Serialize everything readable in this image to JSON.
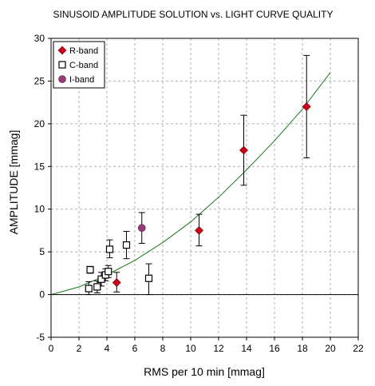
{
  "chart_data": {
    "type": "scatter",
    "title": "SINUSOID AMPLITUDE SOLUTION vs. LIGHT CURVE QUALITY",
    "xlabel": "RMS per 10 min [mmag]",
    "ylabel": "AMPLITUDE [mmag]",
    "xlim": [
      0,
      22
    ],
    "ylim": [
      -5,
      30
    ],
    "xticks": [
      0,
      2,
      4,
      6,
      8,
      10,
      12,
      14,
      16,
      18,
      20,
      22
    ],
    "yticks": [
      -5,
      0,
      5,
      10,
      15,
      20,
      25,
      30
    ],
    "grid": true,
    "legend_position": "top-left",
    "series": [
      {
        "name": "R-band",
        "marker": "diamond",
        "color": "#d0021b",
        "points": [
          {
            "x": 4.7,
            "y": 1.4,
            "ylo": 0.3,
            "yhi": 2.6
          },
          {
            "x": 10.6,
            "y": 7.5,
            "ylo": 5.7,
            "yhi": 9.4
          },
          {
            "x": 13.8,
            "y": 16.9,
            "ylo": 12.8,
            "yhi": 21.0
          },
          {
            "x": 18.3,
            "y": 22.0,
            "ylo": 16.0,
            "yhi": 28.0
          }
        ]
      },
      {
        "name": "C-band",
        "marker": "square",
        "color": "#000000",
        "points": [
          {
            "x": 2.7,
            "y": 0.7,
            "ylo": 0.0,
            "yhi": 1.5
          },
          {
            "x": 2.8,
            "y": 2.9,
            "ylo": 2.5,
            "yhi": 3.3
          },
          {
            "x": 3.3,
            "y": 0.9,
            "ylo": 0.2,
            "yhi": 1.6
          },
          {
            "x": 3.6,
            "y": 1.8,
            "ylo": 1.0,
            "yhi": 2.6
          },
          {
            "x": 3.9,
            "y": 2.3,
            "ylo": 1.6,
            "yhi": 3.0
          },
          {
            "x": 4.1,
            "y": 2.7,
            "ylo": 2.0,
            "yhi": 3.4
          },
          {
            "x": 4.2,
            "y": 5.3,
            "ylo": 4.3,
            "yhi": 6.4
          },
          {
            "x": 5.4,
            "y": 5.8,
            "ylo": 4.2,
            "yhi": 7.4
          },
          {
            "x": 7.0,
            "y": 1.9,
            "ylo": 0.0,
            "yhi": 3.6
          }
        ]
      },
      {
        "name": "I-band",
        "marker": "circle",
        "color": "#9b3a7a",
        "points": [
          {
            "x": 6.5,
            "y": 7.8,
            "ylo": 6.0,
            "yhi": 9.6
          }
        ]
      }
    ],
    "trend_curve": {
      "color": "#1a7a1a",
      "x": [
        0,
        2,
        4,
        6,
        8,
        10,
        12,
        14,
        16,
        18,
        20
      ],
      "y": [
        0.0,
        0.9,
        2.3,
        4.0,
        6.1,
        8.5,
        11.4,
        14.6,
        18.0,
        21.7,
        26.0
      ]
    }
  }
}
